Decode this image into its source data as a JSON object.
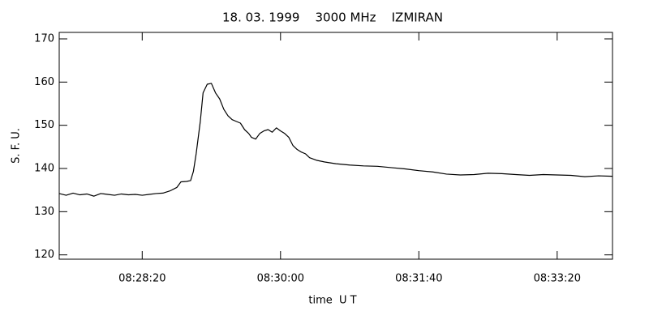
{
  "chart_data": {
    "type": "line",
    "title": "18. 03. 1999    3000 MHz    IZMIRAN",
    "x_label": "time  U T",
    "y_label": "S. F. U.",
    "x": [
      30440,
      30445,
      30450,
      30455,
      30460,
      30465,
      30470,
      30475,
      30480,
      30485,
      30490,
      30495,
      30500,
      30505,
      30510,
      30515,
      30520,
      30525,
      30528,
      30532,
      30535,
      30537,
      30539,
      30542,
      30544,
      30547,
      30550,
      30553,
      30556,
      30559,
      30562,
      30565,
      30568,
      30571,
      30574,
      30577,
      30579,
      30582,
      30585,
      30588,
      30591,
      30594,
      30597,
      30600,
      30603,
      30606,
      30609,
      30612,
      30615,
      30618,
      30621,
      30626,
      30632,
      30640,
      30650,
      30660,
      30670,
      30680,
      30690,
      30700,
      30710,
      30720,
      30730,
      30740,
      30750,
      30760,
      30770,
      30780,
      30790,
      30800,
      30810,
      30820,
      30830,
      30840
    ],
    "series": [
      {
        "color": "#000000",
        "values": [
          134.2,
          133.8,
          134.3,
          133.9,
          134.1,
          133.6,
          134.2,
          134.0,
          133.8,
          134.1,
          133.9,
          134.0,
          133.8,
          134.0,
          134.2,
          134.3,
          134.8,
          135.6,
          136.9,
          137.0,
          137.2,
          139.3,
          143.4,
          150.9,
          157.5,
          159.5,
          159.7,
          157.5,
          156.1,
          153.7,
          152.2,
          151.3,
          150.9,
          150.5,
          149.0,
          148.1,
          147.2,
          146.8,
          148.1,
          148.7,
          149.0,
          148.4,
          149.4,
          148.7,
          148.1,
          147.2,
          145.3,
          144.4,
          143.8,
          143.4,
          142.5,
          141.9,
          141.5,
          141.1,
          140.8,
          140.6,
          140.5,
          140.2,
          139.9,
          139.5,
          139.2,
          138.7,
          138.5,
          138.6,
          138.9,
          138.8,
          138.6,
          138.4,
          138.6,
          138.5,
          138.4,
          138.1,
          138.3,
          138.2
        ]
      }
    ],
    "xlim": [
      30440,
      30840
    ],
    "xticks": [
      {
        "value": 30500,
        "label": "08:28:20"
      },
      {
        "value": 30600,
        "label": "08:30:00"
      },
      {
        "value": 30700,
        "label": "08:31:40"
      },
      {
        "value": 30800,
        "label": "08:33:20"
      }
    ],
    "ylim": [
      119,
      171.5
    ],
    "yticks": [
      120,
      130,
      140,
      150,
      160,
      170
    ],
    "grid": false
  }
}
